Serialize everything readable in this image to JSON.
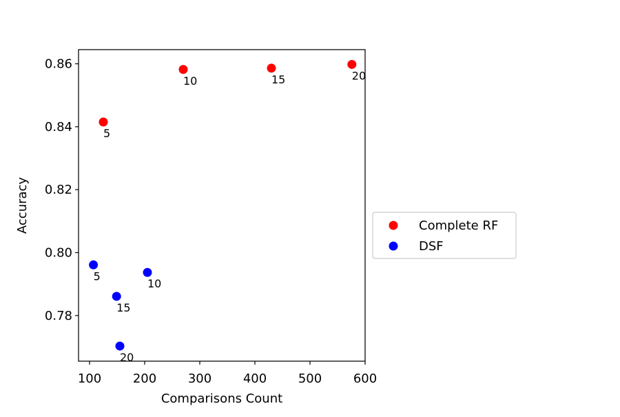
{
  "chart_data": {
    "type": "scatter",
    "xlabel": "Comparisons Count",
    "ylabel": "Accuracy",
    "xlim": [
      80,
      600
    ],
    "ylim": [
      0.7655,
      0.8645
    ],
    "xticks": [
      100,
      200,
      300,
      400,
      500,
      600
    ],
    "yticks": [
      0.78,
      0.8,
      0.82,
      0.84,
      0.86
    ],
    "xtick_labels": [
      "100",
      "200",
      "300",
      "400",
      "500",
      "600"
    ],
    "ytick_labels": [
      "0.78",
      "0.80",
      "0.82",
      "0.84",
      "0.86"
    ],
    "grid": false,
    "legend": {
      "placement": "right-outside"
    },
    "series": [
      {
        "name": "Complete RF",
        "color": "#ff0000",
        "points": [
          {
            "x": 125,
            "y": 0.8415,
            "label": "5"
          },
          {
            "x": 270,
            "y": 0.8582,
            "label": "10"
          },
          {
            "x": 430,
            "y": 0.8586,
            "label": "15"
          },
          {
            "x": 576,
            "y": 0.8598,
            "label": "20"
          }
        ]
      },
      {
        "name": "DSF",
        "color": "#0000ff",
        "points": [
          {
            "x": 107,
            "y": 0.7961,
            "label": "5"
          },
          {
            "x": 205,
            "y": 0.7937,
            "label": "10"
          },
          {
            "x": 149,
            "y": 0.7861,
            "label": "15"
          },
          {
            "x": 155,
            "y": 0.7703,
            "label": "20"
          }
        ]
      }
    ]
  }
}
